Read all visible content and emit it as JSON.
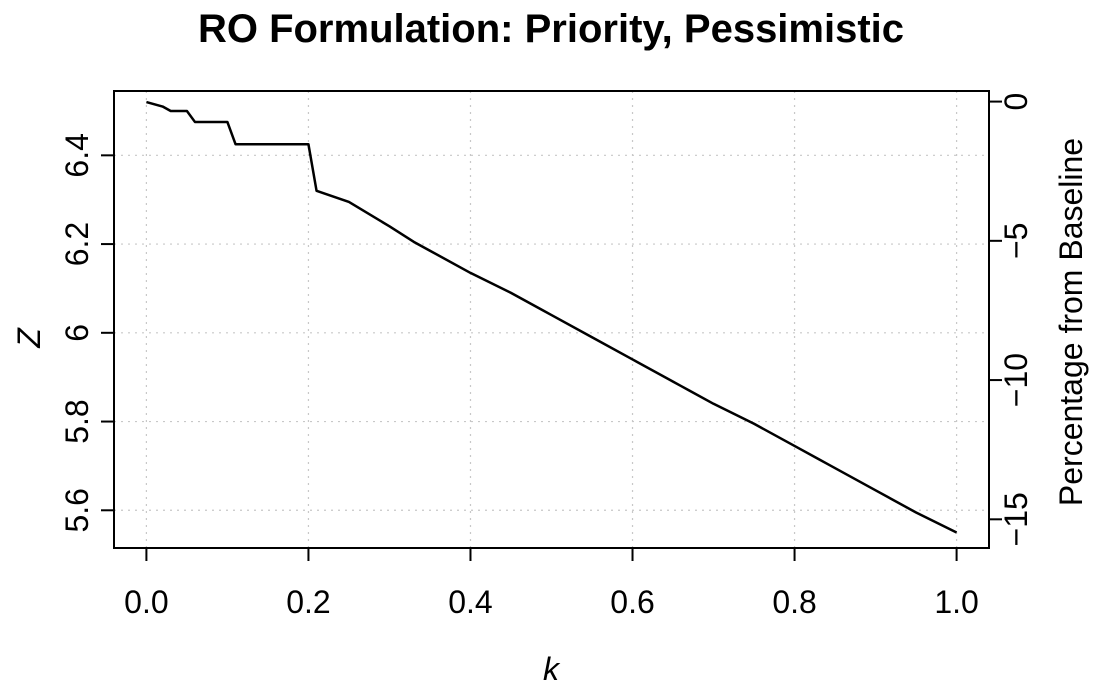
{
  "chart_data": {
    "type": "line",
    "title": "RO Formulation: Priority, Pessimistic",
    "xlabel": "k",
    "ylabel": "Z",
    "y2label": "Percentage from Baseline",
    "xlim": [
      -0.04,
      1.04
    ],
    "ylim": [
      5.515,
      6.545
    ],
    "y2lim": [
      -16.03,
      0.38
    ],
    "x_ticks": [
      0.0,
      0.2,
      0.4,
      0.6,
      0.8,
      1.0
    ],
    "x_tick_labels": [
      "0.0",
      "0.2",
      "0.4",
      "0.6",
      "0.8",
      "1.0"
    ],
    "y_ticks": [
      5.6,
      5.8,
      6.0,
      6.2,
      6.4
    ],
    "y_tick_labels": [
      "5.6",
      "5.8",
      "6",
      "6.2",
      "6.4"
    ],
    "y2_ticks": [
      0,
      -5,
      -10,
      -15
    ],
    "y2_tick_labels": [
      "0",
      "−5",
      "−10",
      "−15"
    ],
    "grid": true,
    "series": [
      {
        "x": [
          0.0,
          0.01,
          0.02,
          0.03,
          0.04,
          0.05,
          0.06,
          0.07,
          0.08,
          0.09,
          0.1,
          0.11,
          0.12,
          0.15,
          0.18,
          0.2,
          0.21,
          0.25,
          0.3,
          0.33,
          0.35,
          0.4,
          0.45,
          0.49,
          0.5,
          0.55,
          0.6,
          0.65,
          0.66,
          0.67,
          0.7,
          0.75,
          0.8,
          0.83,
          0.84,
          0.9,
          0.95,
          1.0
        ],
        "y": [
          6.52,
          6.515,
          6.51,
          6.5,
          6.5,
          6.5,
          6.475,
          6.475,
          6.475,
          6.475,
          6.475,
          6.425,
          6.425,
          6.425,
          6.425,
          6.425,
          6.32,
          6.295,
          6.24,
          6.205,
          6.185,
          6.135,
          6.09,
          6.05,
          6.04,
          5.99,
          5.94,
          5.89,
          5.88,
          5.87,
          5.84,
          5.795,
          5.745,
          5.715,
          5.705,
          5.645,
          5.595,
          5.55
        ]
      }
    ]
  }
}
